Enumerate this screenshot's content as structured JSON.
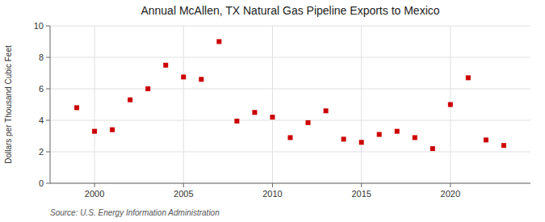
{
  "chart_data": {
    "type": "scatter",
    "title": "Annual McAllen, TX Natural Gas Pipeline Exports to Mexico",
    "ylabel": "Dollars per Thousand Cubic Feet",
    "annotations": [
      "Source: U.S. Energy Information Administration"
    ],
    "x": [
      1999,
      2000,
      2001,
      2002,
      2003,
      2004,
      2005,
      2006,
      2007,
      2008,
      2009,
      2010,
      2011,
      2012,
      2013,
      2014,
      2015,
      2016,
      2017,
      2018,
      2019,
      2020,
      2021,
      2022,
      2023
    ],
    "values": [
      4.8,
      3.3,
      3.4,
      5.3,
      6.0,
      7.5,
      6.75,
      6.6,
      9.0,
      3.95,
      4.5,
      4.2,
      2.9,
      3.85,
      4.6,
      2.8,
      2.6,
      3.1,
      3.3,
      2.9,
      2.2,
      5.0,
      6.7,
      2.75,
      2.4
    ],
    "color": "#cc0000",
    "marker": "square",
    "xlim": [
      1997.5,
      2024.5
    ],
    "ylim": [
      0,
      10
    ],
    "xticks": [
      2000,
      2005,
      2010,
      2015,
      2020
    ],
    "yticks": [
      0,
      2,
      4,
      6,
      8,
      10
    ],
    "grid": true
  }
}
